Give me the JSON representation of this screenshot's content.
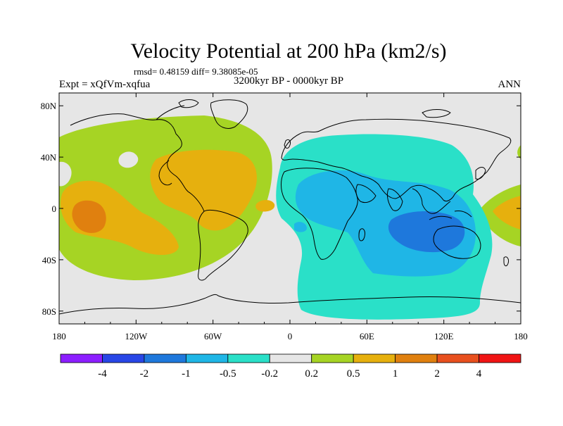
{
  "title": "Velocity Potential at 200 hPa (km2/s)",
  "stats_line": "rmsd= 0.48159  diff= 9.38085e-05",
  "experiment": "Expt = xQfVm-xqfua",
  "period": "3200kyr BP - 0000kyr BP",
  "season": "ANN",
  "map": {
    "projection": "cylindrical-equidistant",
    "lon_range": [
      -180,
      180
    ],
    "lat_range": [
      -90,
      90
    ],
    "x_tick_labels": [
      {
        "lon": -180,
        "label": "180"
      },
      {
        "lon": -120,
        "label": "120W"
      },
      {
        "lon": -60,
        "label": "60W"
      },
      {
        "lon": 0,
        "label": "0"
      },
      {
        "lon": 60,
        "label": "60E"
      },
      {
        "lon": 120,
        "label": "120E"
      },
      {
        "lon": 180,
        "label": "180"
      }
    ],
    "y_tick_labels": [
      {
        "lat": 80,
        "label": "80N"
      },
      {
        "lat": 40,
        "label": "40N"
      },
      {
        "lat": 0,
        "label": "0"
      },
      {
        "lat": -40,
        "label": "40S"
      },
      {
        "lat": -80,
        "label": "80S"
      }
    ],
    "background_color": "#e6e6e6",
    "features": [
      {
        "name": "western-hemisphere-positive-anomaly",
        "class": "0.2 to 0.5",
        "color": "#a6d424"
      },
      {
        "name": "eastern-hemisphere-negative-anomaly",
        "class": "-0.5 to -0.2",
        "color": "#2ae0c8"
      },
      {
        "name": "indian-ocean-negative-core",
        "class": "-1 to -0.5",
        "color": "#1fb6e6"
      },
      {
        "name": "indo-pacific-negative-core",
        "class": "-2 to -1",
        "color": "#1e78dc"
      },
      {
        "name": "atlantic-positive-core",
        "class": "0.5 to 1",
        "color": "#e6b00e"
      },
      {
        "name": "pacific-positive-core",
        "class": "1 to 2",
        "color": "#e0800f"
      }
    ]
  },
  "colorbar": {
    "colors": [
      "#8c1eff",
      "#2846e6",
      "#1e78dc",
      "#1fb6e6",
      "#2ae0c8",
      "#e6e6e6",
      "#a6d424",
      "#e6b00e",
      "#e0800f",
      "#e8501e",
      "#f01414"
    ],
    "labels": [
      "-4",
      "-2",
      "-1",
      "-0.5",
      "-0.2",
      "0.2",
      "0.5",
      "1",
      "2",
      "4"
    ]
  }
}
